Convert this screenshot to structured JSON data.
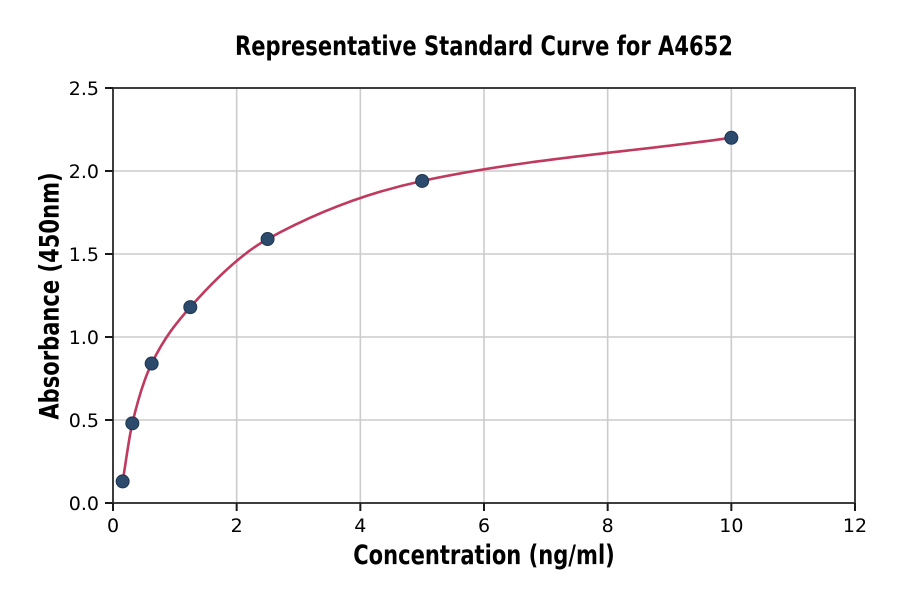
{
  "chart_data": {
    "type": "scatter",
    "title": "Representative Standard Curve for A4652",
    "xlabel": "Concentration (ng/ml)",
    "ylabel": "Absorbance (450nm)",
    "xlim": [
      0,
      12
    ],
    "ylim": [
      0,
      2.5
    ],
    "xticks": [
      0,
      2,
      4,
      6,
      8,
      10,
      12
    ],
    "xtick_labels": [
      "0",
      "2",
      "4",
      "6",
      "8",
      "10",
      "12"
    ],
    "yticks": [
      0,
      0.5,
      1.0,
      1.5,
      2.0,
      2.5
    ],
    "ytick_labels": [
      "0.0",
      "0.5",
      "1.0",
      "1.5",
      "2.0",
      "2.5"
    ],
    "grid": true,
    "legend": "none",
    "has_fit_curve": true,
    "points": [
      {
        "x": 0.156,
        "y": 0.13
      },
      {
        "x": 0.3125,
        "y": 0.48
      },
      {
        "x": 0.625,
        "y": 0.84
      },
      {
        "x": 1.25,
        "y": 1.18
      },
      {
        "x": 2.5,
        "y": 1.59
      },
      {
        "x": 5,
        "y": 1.94
      },
      {
        "x": 10,
        "y": 2.2
      }
    ],
    "colors": {
      "curve": "#c03a60",
      "marker": "#2c4a6b",
      "marker_edge": "#1f3550",
      "grid": "#cccccc",
      "spine": "#3d3d3d",
      "tick": "#1a1a1a",
      "text": "#000000"
    }
  }
}
